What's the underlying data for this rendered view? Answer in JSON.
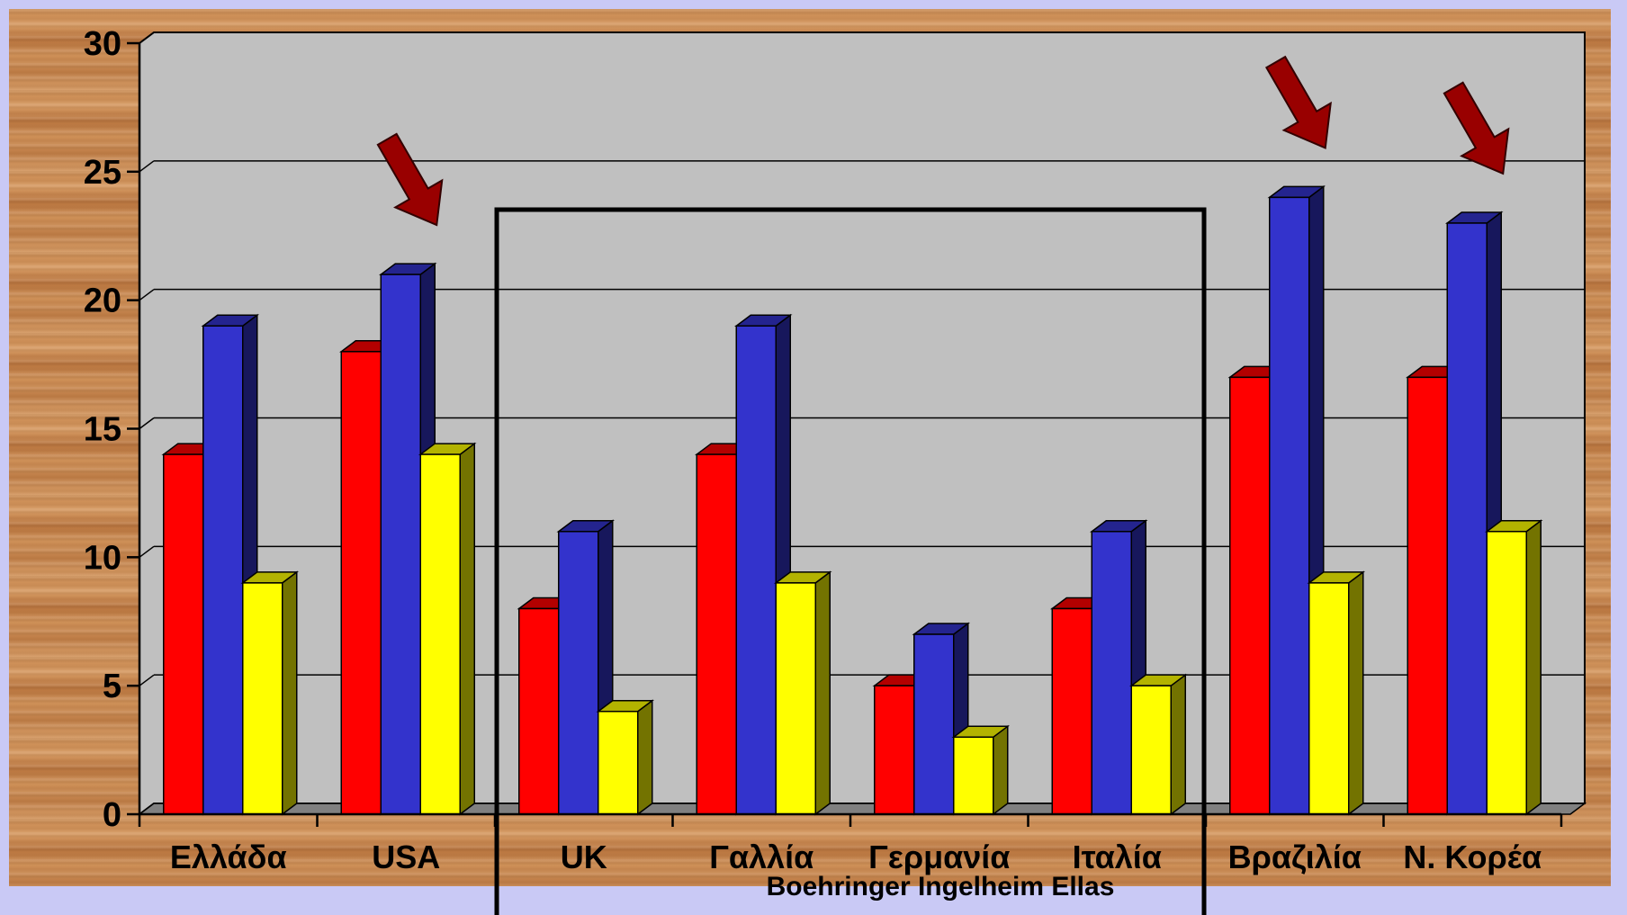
{
  "chart_data": {
    "type": "bar",
    "categories": [
      "Ελλάδα",
      "USA",
      "UK",
      "Γαλλία",
      "Γερμανία",
      "Ιταλία",
      "Βραζιλία",
      "Ν. Κορέα"
    ],
    "series": [
      {
        "color": "#ff0000",
        "values": [
          14,
          18,
          8,
          14,
          5,
          8,
          17,
          17
        ]
      },
      {
        "color": "#3333cc",
        "values": [
          19,
          21,
          11,
          19,
          7,
          11,
          24,
          23
        ]
      },
      {
        "color": "#ffff00",
        "values": [
          9,
          14,
          4,
          9,
          3,
          5,
          9,
          11
        ]
      }
    ],
    "ylim": [
      0,
      30
    ],
    "yticks": [
      "0",
      "5",
      "10",
      "15",
      "20",
      "25",
      "30"
    ],
    "grid": true,
    "title": "",
    "xlabel": "",
    "ylabel": "",
    "highlight_box_categories": [
      "UK",
      "Γαλλία",
      "Γερμανία",
      "Ιταλία"
    ],
    "arrow_categories": [
      "USA",
      "Βραζιλία",
      "Ν. Κορέα"
    ],
    "arrow_color": "#990000"
  },
  "footer_text": "Boehringer Ingelheim  Ellas"
}
